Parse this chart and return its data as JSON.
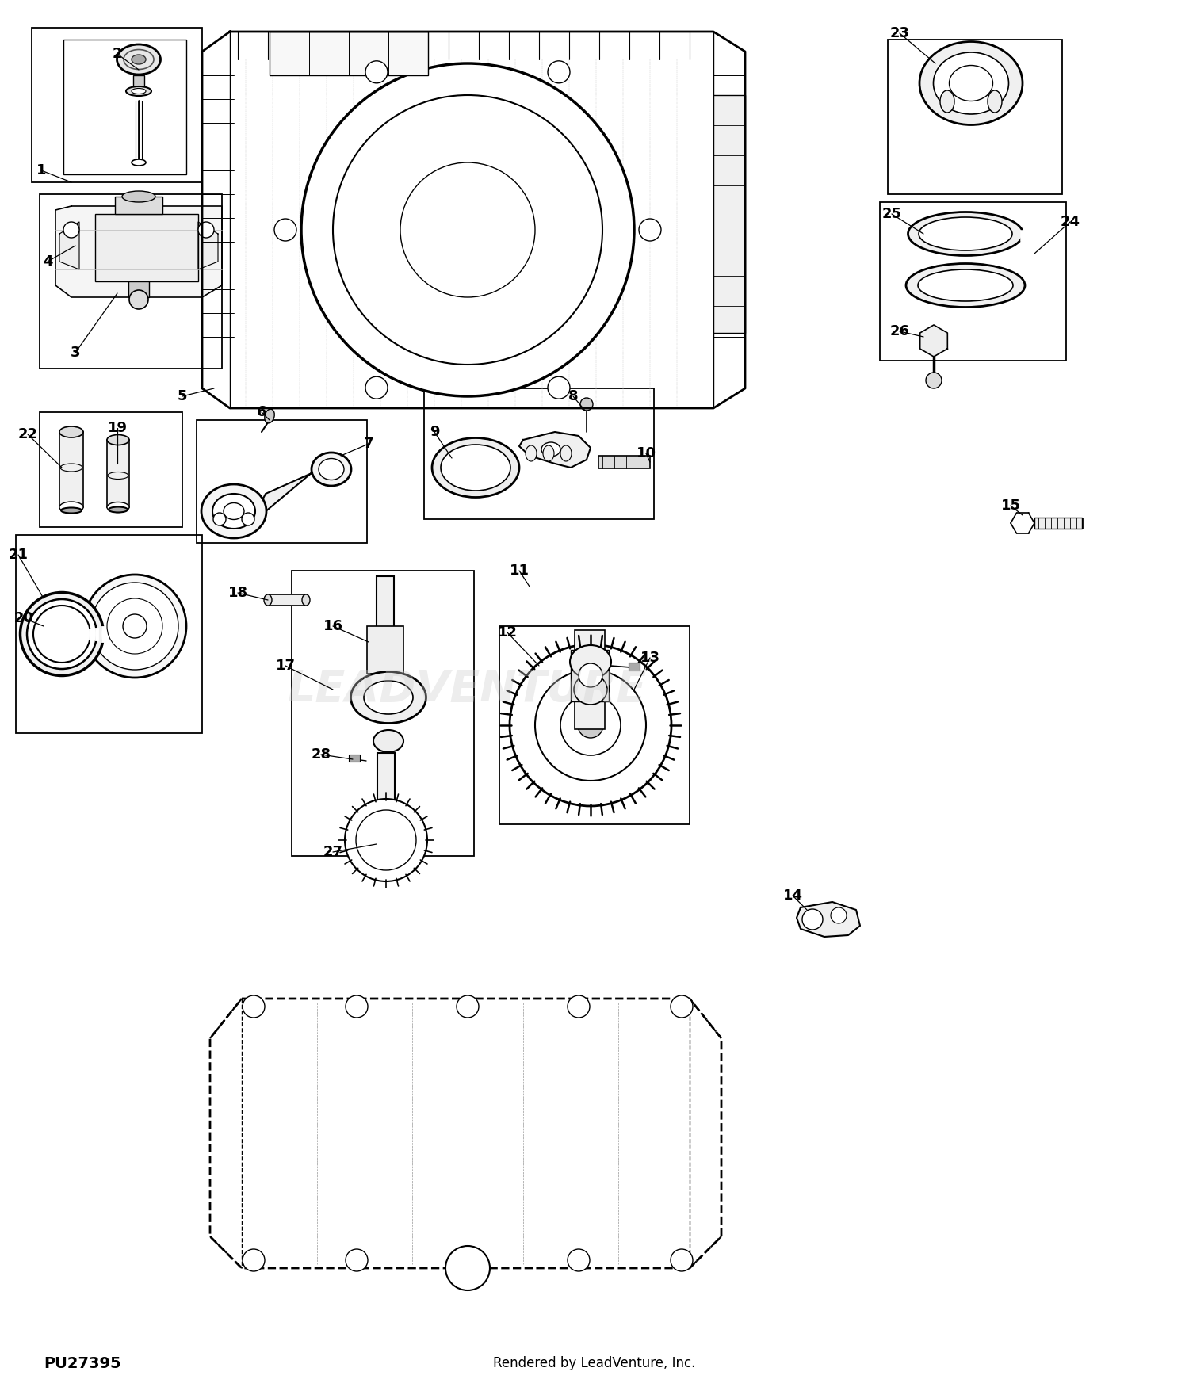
{
  "footer_left": "PU27395",
  "footer_right": "Rendered by LeadVenture, Inc.",
  "bg_color": "#ffffff",
  "watermark": "LEADVENTURE",
  "figsize": [
    15.0,
    17.5
  ],
  "dpi": 100
}
